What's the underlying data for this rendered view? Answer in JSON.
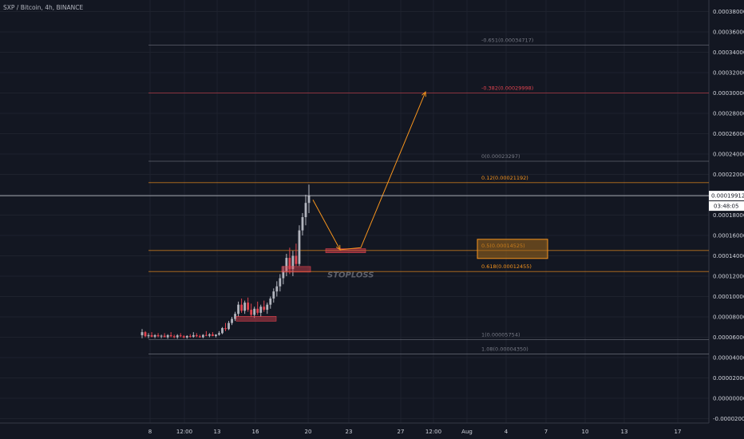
{
  "header": {
    "symbol": "SXP / Bitcoin, 4h, BINANCE"
  },
  "chart_data": {
    "type": "candlestick",
    "symbol": "SXP / Bitcoin",
    "interval": "4h",
    "exchange": "BINANCE",
    "ylim": [
      -2e-05,
      0.00038
    ],
    "y_ticks": [
      "0.00038000",
      "0.00036000",
      "0.00034000",
      "0.00032000",
      "0.00030000",
      "0.00028000",
      "0.00026000",
      "0.00024000",
      "0.00022000",
      "0.00020000",
      "0.00018000",
      "0.00016000",
      "0.00014000",
      "0.00012000",
      "0.00010000",
      "0.00008000",
      "0.00006000",
      "0.00004000",
      "0.00002000",
      "0.00000000",
      "-0.00002000"
    ],
    "x_ticks": [
      "8",
      "12:00",
      "13",
      "16",
      "20",
      "23",
      "27",
      "12:00",
      "Aug",
      "4",
      "7",
      "10",
      "13",
      "17"
    ],
    "current_price": {
      "value": 0.00019912,
      "label": "0.00019912",
      "countdown": "03:48:05"
    },
    "fib_levels": [
      {
        "label": "-0.651(0.00034717)",
        "value": 0.00034717,
        "color": "#787b86"
      },
      {
        "label": "-0.382(0.00029998)",
        "value": 0.00029998,
        "color": "#e0434f"
      },
      {
        "label": "0(0.00023297)",
        "value": 0.00023297,
        "color": "#787b86"
      },
      {
        "label": "0.12(0.00021192)",
        "value": 0.00021192,
        "color": "#f7941d"
      },
      {
        "label": "0.5(0.00014525)",
        "value": 0.00014525,
        "color": "#f7941d"
      },
      {
        "label": "0.618(0.00012455)",
        "value": 0.00012455,
        "color": "#f7941d"
      },
      {
        "label": "1(0.00005754)",
        "value": 5.754e-05,
        "color": "#787b86"
      },
      {
        "label": "1.08(0.00004350)",
        "value": 4.35e-05,
        "color": "#787b86"
      }
    ],
    "annotations": {
      "stoploss": "STOPLOSS"
    },
    "projection_path": [
      {
        "x": "20 ~08:00",
        "y": 0.000195
      },
      {
        "x": "22 ~04:00",
        "y": 0.000146
      },
      {
        "x": "24 ~12:00",
        "y": 0.000148
      },
      {
        "x": "28 ~00:00",
        "y": 0.000301
      }
    ],
    "candles_approx": [
      [
        6.2e-05,
        6.8e-05,
        5.9e-05,
        6.5e-05
      ],
      [
        6.5e-05,
        6.6e-05,
        6e-05,
        6.1e-05
      ],
      [
        6.1e-05,
        6.4e-05,
        5.9e-05,
        6.2e-05
      ],
      [
        6.2e-05,
        6.5e-05,
        6e-05,
        6.05e-05
      ],
      [
        6.05e-05,
        6.3e-05,
        5.9e-05,
        6.2e-05
      ],
      [
        6.2e-05,
        6.4e-05,
        6e-05,
        6.1e-05
      ],
      [
        6.1e-05,
        6.25e-05,
        5.9e-05,
        6.15e-05
      ],
      [
        6.15e-05,
        6.4e-05,
        6e-05,
        6e-05
      ],
      [
        6e-05,
        6.3e-05,
        5.85e-05,
        6.2e-05
      ],
      [
        6.2e-05,
        6.5e-05,
        6e-05,
        6.1e-05
      ],
      [
        6.1e-05,
        6.25e-05,
        5.9e-05,
        6e-05
      ],
      [
        6e-05,
        6.3e-05,
        5.85e-05,
        6.18e-05
      ],
      [
        6.18e-05,
        6.4e-05,
        6e-05,
        6.1e-05
      ],
      [
        6.1e-05,
        6.2e-05,
        5.9e-05,
        5.98e-05
      ],
      [
        5.98e-05,
        6.2e-05,
        5.85e-05,
        6.12e-05
      ],
      [
        6.12e-05,
        6.3e-05,
        5.95e-05,
        6.05e-05
      ],
      [
        6.05e-05,
        6.5e-05,
        5.95e-05,
        6.2e-05
      ],
      [
        6.2e-05,
        6.4e-05,
        6e-05,
        6.1e-05
      ],
      [
        6.1e-05,
        6.25e-05,
        5.95e-05,
        6e-05
      ],
      [
        6e-05,
        6.3e-05,
        5.9e-05,
        6.22e-05
      ],
      [
        6.22e-05,
        6.6e-05,
        6.1e-05,
        6.15e-05
      ],
      [
        6.15e-05,
        6.4e-05,
        6e-05,
        6.28e-05
      ],
      [
        6.28e-05,
        6.5e-05,
        6.1e-05,
        6.12e-05
      ],
      [
        6.12e-05,
        6.3e-05,
        5.98e-05,
        6.25e-05
      ],
      [
        6.25e-05,
        6.6e-05,
        6.15e-05,
        6.4e-05
      ],
      [
        6.4e-05,
        7e-05,
        6.3e-05,
        6.9e-05
      ],
      [
        6.9e-05,
        7.4e-05,
        6.6e-05,
        6.8e-05
      ],
      [
        6.8e-05,
        7.6e-05,
        6.7e-05,
        7.4e-05
      ],
      [
        7.4e-05,
        8e-05,
        7.2e-05,
        7.8e-05
      ],
      [
        7.8e-05,
        8.5e-05,
        7.6e-05,
        8.3e-05
      ],
      [
        8.3e-05,
        9.5e-05,
        8e-05,
        9.2e-05
      ],
      [
        9.2e-05,
        9.8e-05,
        8.4e-05,
        8.6e-05
      ],
      [
        8.6e-05,
        9.6e-05,
        8.3e-05,
        9.4e-05
      ],
      [
        9.4e-05,
        9.9e-05,
        8.5e-05,
        8.7e-05
      ],
      [
        8.7e-05,
        9.3e-05,
        8e-05,
        8.2e-05
      ],
      [
        8.2e-05,
        9e-05,
        7.9e-05,
        8.8e-05
      ],
      [
        8.8e-05,
        9.5e-05,
        8.2e-05,
        8.4e-05
      ],
      [
        8.4e-05,
        9.2e-05,
        8e-05,
        9e-05
      ],
      [
        9e-05,
        9.6e-05,
        8.5e-05,
        8.7e-05
      ],
      [
        8.7e-05,
        9.4e-05,
        8.3e-05,
        9.2e-05
      ],
      [
        9.2e-05,
        0.0001,
        8.8e-05,
        9.8e-05
      ],
      [
        9.8e-05,
        0.000108,
        9.4e-05,
        0.000105
      ],
      [
        0.000105,
        0.000115,
        0.0001,
        0.00011
      ],
      [
        0.00011,
        0.000122,
        0.000105,
        0.000118
      ],
      [
        0.000118,
        0.00013,
        0.000112,
        0.000125
      ],
      [
        0.000125,
        0.000142,
        0.00012,
        0.000138
      ],
      [
        0.000138,
        0.000148,
        0.000122,
        0.000127
      ],
      [
        0.000127,
        0.000145,
        0.00012,
        0.00014
      ],
      [
        0.00014,
        0.000152,
        0.00013,
        0.000132
      ],
      [
        0.000132,
        0.00017,
        0.00013,
        0.000165
      ],
      [
        0.000165,
        0.000182,
        0.00016,
        0.000178
      ],
      [
        0.000178,
        0.0002,
        0.00017,
        0.000192
      ],
      [
        0.000192,
        0.00021,
        0.000182,
        0.000199
      ]
    ]
  },
  "colors": {
    "background": "#131722",
    "grid": "#1e222d",
    "axis_text": "#d1d4dc",
    "candle_up": "#b2b5be",
    "candle_down": "#e0434f",
    "projection": "#f7941d",
    "box_fill": "#a0671c",
    "stoploss_text": "#5d606b"
  }
}
